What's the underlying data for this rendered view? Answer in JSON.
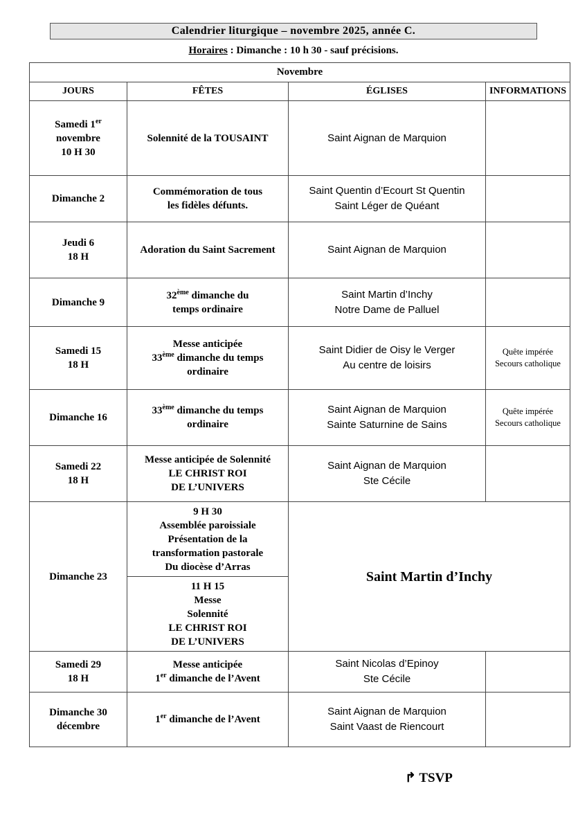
{
  "header": {
    "title": "Calendrier liturgique – novembre 2025, année C.",
    "schedule_label": "Horaires",
    "schedule_text": " : Dimanche : 10 h 30 - sauf précisions."
  },
  "table": {
    "month": "Novembre",
    "columns": [
      "JOURS",
      "FÊTES",
      "ÉGLISES",
      "INFORMATIONS"
    ],
    "rows": [
      {
        "jour": [
          [
            {
              "t": "Samedi  1"
            },
            {
              "sup": "er"
            }
          ],
          [
            {
              "t": "novembre"
            }
          ],
          [
            {
              "t": "10 H 30"
            }
          ]
        ],
        "fete": [
          [
            {
              "t": "Solennité de la TOUSAINT"
            }
          ]
        ],
        "eglise": [
          "Saint Aignan de Marquion"
        ],
        "info": []
      },
      {
        "jour": [
          [
            {
              "t": "Dimanche 2"
            }
          ]
        ],
        "fete": [
          [
            {
              "t": "Commémoration de tous"
            }
          ],
          [
            {
              "t": "les fidèles défunts."
            }
          ]
        ],
        "eglise": [
          "Saint Quentin d’Ecourt St Quentin",
          "Saint Léger de Quéant"
        ],
        "info": []
      },
      {
        "jour": [
          [
            {
              "t": "Jeudi 6"
            }
          ],
          [
            {
              "t": "18 H"
            }
          ]
        ],
        "fete": [
          [
            {
              "t": "Adoration du Saint Sacrement"
            }
          ]
        ],
        "eglise": [
          "Saint Aignan de Marquion"
        ],
        "info": []
      },
      {
        "jour": [
          [
            {
              "t": "Dimanche 9"
            }
          ]
        ],
        "fete": [
          [
            {
              "t": "32"
            },
            {
              "sup": "ème"
            },
            {
              "t": " dimanche du"
            }
          ],
          [
            {
              "t": "temps ordinaire"
            }
          ]
        ],
        "eglise": [
          "Saint Martin d’Inchy",
          "Notre Dame de Palluel"
        ],
        "info": []
      },
      {
        "jour": [
          [
            {
              "t": "Samedi 15"
            }
          ],
          [
            {
              "t": "18 H"
            }
          ]
        ],
        "fete": [
          [
            {
              "t": "Messe anticipée"
            }
          ],
          [
            {
              "t": "33"
            },
            {
              "sup": "ème"
            },
            {
              "t": " dimanche du temps"
            }
          ],
          [
            {
              "t": "ordinaire"
            }
          ]
        ],
        "eglise": [
          "Saint Didier de Oisy le Verger",
          "Au centre de loisirs"
        ],
        "info": [
          "Quête impérée",
          "Secours catholique"
        ]
      },
      {
        "jour": [
          [
            {
              "t": "Dimanche 16"
            }
          ]
        ],
        "fete": [
          [
            {
              "t": "33"
            },
            {
              "sup": "ème"
            },
            {
              "t": " dimanche du temps"
            }
          ],
          [
            {
              "t": "ordinaire"
            }
          ]
        ],
        "eglise": [
          "Saint Aignan de Marquion",
          "Sainte Saturnine de Sains"
        ],
        "info": [
          "Quête impérée",
          "Secours catholique"
        ]
      },
      {
        "jour": [
          [
            {
              "t": "Samedi 22"
            }
          ],
          [
            {
              "t": "18 H"
            }
          ]
        ],
        "fete": [
          [
            {
              "t": "Messe anticipée de Solennité"
            }
          ],
          [
            {
              "t": "LE CHRIST ROI"
            }
          ],
          [
            {
              "t": "DE L’UNIVERS"
            }
          ]
        ],
        "eglise": [
          "Saint Aignan de Marquion",
          "Ste Cécile"
        ],
        "info": []
      },
      {
        "jour": [
          [
            {
              "t": "Dimanche 23"
            }
          ]
        ],
        "fete": [
          [
            {
              "t": "9 H 30"
            }
          ],
          [
            {
              "t": "Assemblée paroissiale"
            }
          ],
          [
            {
              "t": "Présentation de la"
            }
          ],
          [
            {
              "t": "transformation pastorale"
            }
          ],
          [
            {
              "t": "Du diocèse d’Arras"
            }
          ]
        ],
        "fete2": [
          [
            {
              "t": "11 H 15"
            }
          ],
          [
            {
              "t": "Messe"
            }
          ],
          [
            {
              "t": "Solennité"
            }
          ],
          [
            {
              "t": "LE CHRIST ROI"
            }
          ],
          [
            {
              "t": "DE L’UNIVERS"
            }
          ]
        ],
        "eglise_big": "Saint Martin d’Inchy"
      },
      {
        "jour": [
          [
            {
              "t": "Samedi 29"
            }
          ],
          [
            {
              "t": "18 H"
            }
          ]
        ],
        "fete": [
          [
            {
              "t": "Messe anticipée"
            }
          ],
          [
            {
              "t": "1"
            },
            {
              "sup": "er"
            },
            {
              "t": " dimanche de l’Avent"
            }
          ]
        ],
        "eglise": [
          "Saint Nicolas d’Epinoy",
          "Ste Cécile"
        ],
        "info": []
      },
      {
        "jour": [
          [
            {
              "t": "Dimanche 30"
            }
          ],
          [
            {
              "t": "décembre"
            }
          ]
        ],
        "fete": [
          [
            {
              "t": "1"
            },
            {
              "sup": "er"
            },
            {
              "t": " dimanche de l’Avent"
            }
          ]
        ],
        "eglise": [
          "Saint Aignan de Marquion",
          "Saint Vaast de Riencourt"
        ],
        "info": []
      }
    ]
  },
  "footer": {
    "arrow_icon": "hooked-arrow-icon",
    "tsvp": "TSVP"
  }
}
